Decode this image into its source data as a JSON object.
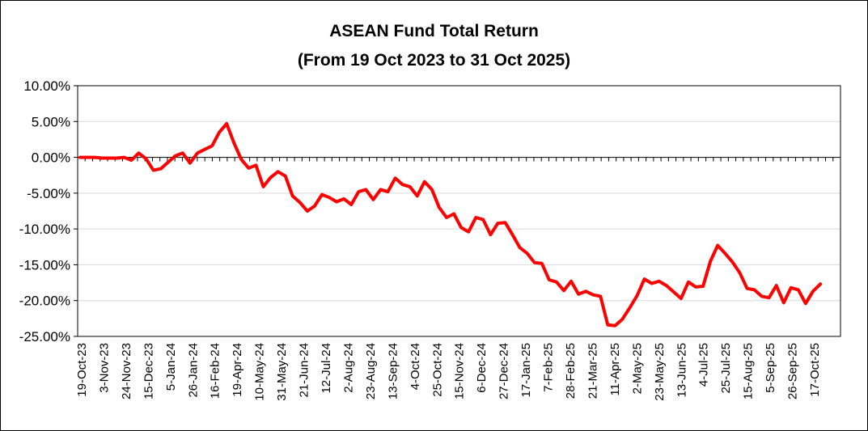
{
  "chart_data": {
    "type": "line",
    "title": "ASEAN Fund Total Return",
    "subtitle": "(From 19 Oct 2023 to 31 Oct 2025)",
    "xlabel": "",
    "ylabel": "",
    "ylim": [
      -25,
      10
    ],
    "y_ticks": [
      10,
      5,
      0,
      -5,
      -10,
      -15,
      -20,
      -25
    ],
    "y_tick_labels": [
      "10.00%",
      "5.00%",
      "0.00%",
      "-5.00%",
      "-10.00%",
      "-15.00%",
      "-20.00%",
      "-25.00%"
    ],
    "x_tick_labels": [
      "19-Oct-23",
      "3-Nov-23",
      "24-Nov-23",
      "15-Dec-23",
      "5-Jan-24",
      "26-Jan-24",
      "16-Feb-24",
      "19-Apr-24",
      "10-May-24",
      "31-May-24",
      "21-Jun-24",
      "12-Jul-24",
      "2-Aug-24",
      "23-Aug-24",
      "13-Sep-24",
      "4-Oct-24",
      "25-Oct-24",
      "15-Nov-24",
      "6-Dec-24",
      "27-Dec-24",
      "17-Jan-25",
      "7-Feb-25",
      "28-Feb-25",
      "21-Mar-25",
      "11-Apr-25",
      "2-May-25",
      "23-May-25",
      "13-Jun-25",
      "4-Jul-25",
      "25-Jul-25",
      "15-Aug-25",
      "5-Sep-25",
      "26-Sep-25",
      "17-Oct-25"
    ],
    "grid": true,
    "line_color": "#ff0000",
    "series": [
      {
        "values": [
          0.0,
          0.0,
          0.0,
          -0.1,
          -0.1,
          -0.1,
          0.0,
          -0.4,
          0.6,
          -0.2,
          -1.8,
          -1.6,
          -0.7,
          0.2,
          0.6,
          -0.8,
          0.6,
          1.1,
          1.6,
          3.5,
          4.7,
          2.0,
          -0.3,
          -1.5,
          -1.1,
          -4.1,
          -2.8,
          -2.0,
          -2.6,
          -5.4,
          -6.3,
          -7.5,
          -6.8,
          -5.2,
          -5.6,
          -6.2,
          -5.8,
          -6.6,
          -4.8,
          -4.5,
          -5.9,
          -4.5,
          -4.8,
          -2.9,
          -3.8,
          -4.1,
          -5.4,
          -3.4,
          -4.5,
          -7.0,
          -8.4,
          -7.9,
          -9.8,
          -10.4,
          -8.4,
          -8.7,
          -10.8,
          -9.2,
          -9.1,
          -10.8,
          -12.6,
          -13.4,
          -14.7,
          -14.8,
          -17.1,
          -17.4,
          -18.6,
          -17.3,
          -19.1,
          -18.7,
          -19.2,
          -19.4,
          -23.4,
          -23.5,
          -22.6,
          -21.0,
          -19.3,
          -17.0,
          -17.6,
          -17.3,
          -17.9,
          -18.8,
          -19.7,
          -17.4,
          -18.1,
          -18.0,
          -14.5,
          -12.3,
          -13.4,
          -14.6,
          -16.1,
          -18.3,
          -18.5,
          -19.4,
          -19.6,
          -17.9,
          -20.3,
          -18.2,
          -18.5,
          -20.4,
          -18.7,
          -17.7
        ]
      }
    ]
  }
}
